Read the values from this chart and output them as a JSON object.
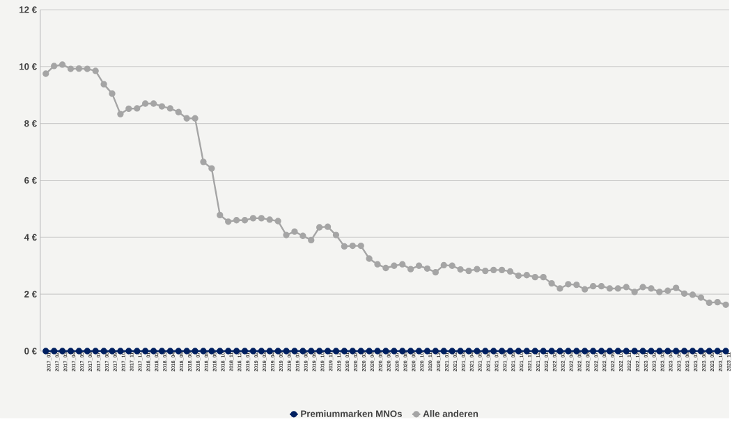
{
  "chart_data": {
    "type": "line",
    "categories": [
      "2017_01",
      "2017_02",
      "2017_03",
      "2017_04",
      "2017_05",
      "2017_06",
      "2017_07",
      "2017_08",
      "2017_09",
      "2017_10",
      "2017_11",
      "2017_12",
      "2018_01",
      "2018_02",
      "2018_03",
      "2018_04",
      "2018_05",
      "2018_06",
      "2018_07",
      "2018_08",
      "2018_09",
      "2018_10",
      "2018_11",
      "2018_12",
      "2019_01",
      "2019_02",
      "2019_03",
      "2019_04",
      "2019_05",
      "2019_06",
      "2019_07",
      "2019_08",
      "2019_09",
      "2019_10",
      "2019_11",
      "2019_12",
      "2020_01",
      "2020_02",
      "2020_03",
      "2020_04",
      "2020_05",
      "2020_06",
      "2020_07",
      "2020_08",
      "2020_09",
      "2020_10",
      "2020_11",
      "2020_12",
      "2021_01",
      "2021_02",
      "2021_03",
      "2021_04",
      "2021_05",
      "2021_06",
      "2021_07",
      "2021_08",
      "2021_09",
      "2021_10",
      "2021_11",
      "2021_12",
      "2022_01",
      "2022_02",
      "2022_03",
      "2022_04",
      "2022_05",
      "2022_06",
      "2022_07",
      "2022_08",
      "2022_09",
      "2022_10",
      "2022_11",
      "2022_12",
      "2023_01",
      "2023_02",
      "2023_03",
      "2023_04",
      "2023_05",
      "2023_06",
      "2023_07",
      "2023_08",
      "2023_09",
      "2023_10",
      "2023_11"
    ],
    "series": [
      {
        "name": "Premiummarken MNOs",
        "color": "#002060",
        "values": [
          0,
          0,
          0,
          0,
          0,
          0,
          0,
          0,
          0,
          0,
          0,
          0,
          0,
          0,
          0,
          0,
          0,
          0,
          0,
          0,
          0,
          0,
          0,
          0,
          0,
          0,
          0,
          0,
          0,
          0,
          0,
          0,
          0,
          0,
          0,
          0,
          0,
          0,
          0,
          0,
          0,
          0,
          0,
          0,
          0,
          0,
          0,
          0,
          0,
          0,
          0,
          0,
          0,
          0,
          0,
          0,
          0,
          0,
          0,
          0,
          0,
          0,
          0,
          0,
          0,
          0,
          0,
          0,
          0,
          0,
          0,
          0,
          0,
          0,
          0,
          0,
          0,
          0,
          0,
          0,
          0,
          0,
          0
        ]
      },
      {
        "name": "Alle anderen",
        "color": "#a5a5a5",
        "values": [
          9.75,
          10.02,
          10.07,
          9.92,
          9.93,
          9.92,
          9.85,
          9.38,
          9.05,
          8.33,
          8.52,
          8.53,
          8.7,
          8.7,
          8.6,
          8.53,
          8.4,
          8.18,
          8.18,
          6.65,
          6.42,
          4.78,
          4.55,
          4.6,
          4.6,
          4.67,
          4.67,
          4.62,
          4.57,
          4.08,
          4.2,
          4.05,
          3.9,
          4.35,
          4.37,
          4.08,
          3.68,
          3.7,
          3.7,
          3.25,
          3.05,
          2.92,
          3.0,
          3.05,
          2.88,
          3.0,
          2.9,
          2.77,
          3.02,
          3.0,
          2.87,
          2.82,
          2.88,
          2.82,
          2.85,
          2.85,
          2.8,
          2.65,
          2.67,
          2.6,
          2.6,
          2.38,
          2.2,
          2.35,
          2.33,
          2.17,
          2.28,
          2.28,
          2.2,
          2.2,
          2.25,
          2.08,
          2.25,
          2.2,
          2.08,
          2.12,
          2.22,
          2.02,
          1.98,
          1.88,
          1.7,
          1.72,
          1.63
        ]
      }
    ],
    "ylim": [
      0,
      12
    ],
    "yticks": [
      {
        "value": 0,
        "label": "0 €"
      },
      {
        "value": 2,
        "label": "2 €"
      },
      {
        "value": 4,
        "label": "4 €"
      },
      {
        "value": 6,
        "label": "6 €"
      },
      {
        "value": 8,
        "label": "8 €"
      },
      {
        "value": 10,
        "label": "10 €"
      },
      {
        "value": 12,
        "label": "12 €"
      }
    ],
    "grid": "y",
    "legend": "bottom",
    "marker": "circle",
    "line_style": "solid"
  }
}
